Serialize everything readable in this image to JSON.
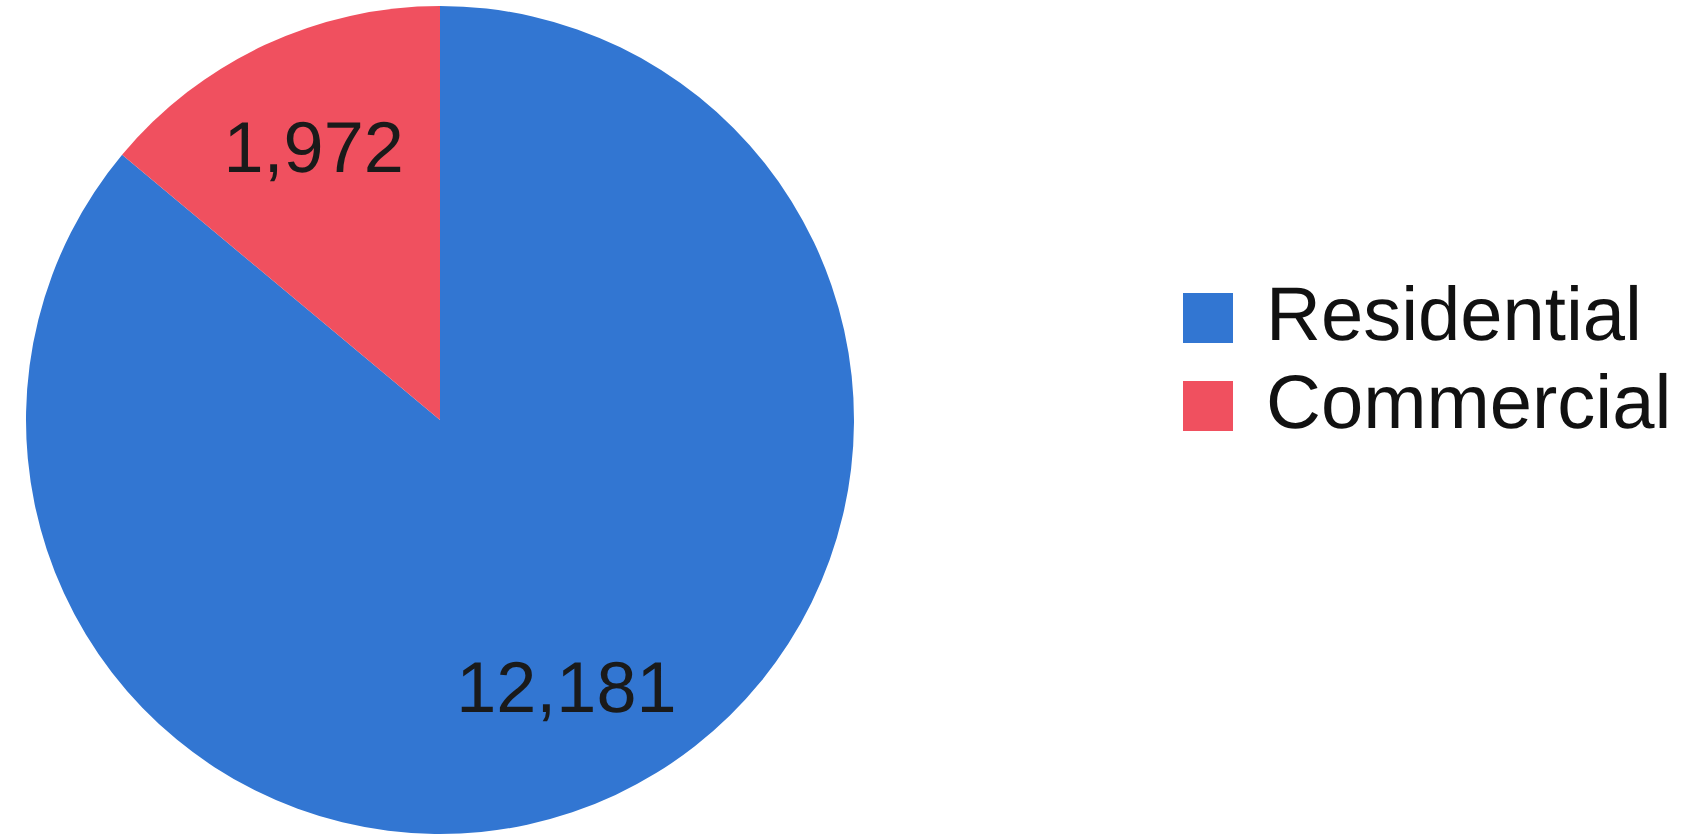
{
  "chart_data": {
    "type": "pie",
    "categories": [
      "Residential",
      "Commercial"
    ],
    "values": [
      12181,
      1972
    ],
    "value_labels": [
      "12,181",
      "1,972"
    ],
    "colors": [
      "#3276d2",
      "#f0505f"
    ],
    "legend": "right"
  }
}
